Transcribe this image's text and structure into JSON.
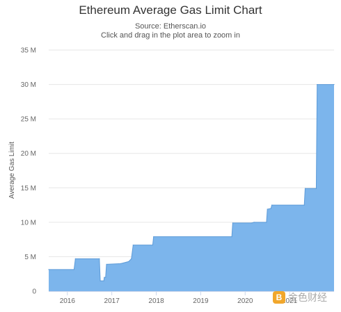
{
  "chart_data": {
    "type": "area",
    "title": "Ethereum Average Gas Limit Chart",
    "subtitle": "Source: Etherscan.io",
    "instruction": "Click and drag in the plot area to zoom in",
    "ylabel": "Average Gas Limit",
    "xlabel": "",
    "ylim": [
      0,
      35
    ],
    "yticks": [
      {
        "value": 0,
        "label": "0"
      },
      {
        "value": 5,
        "label": "5 M"
      },
      {
        "value": 10,
        "label": "10 M"
      },
      {
        "value": 15,
        "label": "15 M"
      },
      {
        "value": 20,
        "label": "20 M"
      },
      {
        "value": 25,
        "label": "25 M"
      },
      {
        "value": 30,
        "label": "30 M"
      },
      {
        "value": 35,
        "label": "35 M"
      }
    ],
    "xlim": [
      2015.58,
      2022.0
    ],
    "xticks": [
      {
        "value": 2016,
        "label": "2016"
      },
      {
        "value": 2017,
        "label": "2017"
      },
      {
        "value": 2018,
        "label": "2018"
      },
      {
        "value": 2019,
        "label": "2019"
      },
      {
        "value": 2020,
        "label": "2020"
      },
      {
        "value": 2021,
        "label": "2021"
      }
    ],
    "grid": true,
    "series_color": "#7cb5ec",
    "series": [
      {
        "unit": "M",
        "points": [
          [
            2015.58,
            3.14
          ],
          [
            2016.15,
            3.14
          ],
          [
            2016.18,
            4.7
          ],
          [
            2016.72,
            4.7
          ],
          [
            2016.74,
            1.5
          ],
          [
            2016.82,
            1.5
          ],
          [
            2016.83,
            2.0
          ],
          [
            2016.86,
            2.0
          ],
          [
            2016.88,
            3.9
          ],
          [
            2017.2,
            4.0
          ],
          [
            2017.38,
            4.3
          ],
          [
            2017.44,
            4.7
          ],
          [
            2017.48,
            6.7
          ],
          [
            2017.92,
            6.7
          ],
          [
            2017.94,
            7.9
          ],
          [
            2019.7,
            7.9
          ],
          [
            2019.72,
            9.9
          ],
          [
            2020.15,
            9.9
          ],
          [
            2020.2,
            10.0
          ],
          [
            2020.48,
            10.0
          ],
          [
            2020.5,
            11.9
          ],
          [
            2020.58,
            12.0
          ],
          [
            2020.6,
            12.5
          ],
          [
            2021.33,
            12.5
          ],
          [
            2021.35,
            14.9
          ],
          [
            2021.6,
            14.9
          ],
          [
            2021.62,
            30.0
          ],
          [
            2022.0,
            30.0
          ]
        ]
      }
    ]
  },
  "watermark": {
    "logo_glyph": "B",
    "text": "金色财经"
  }
}
